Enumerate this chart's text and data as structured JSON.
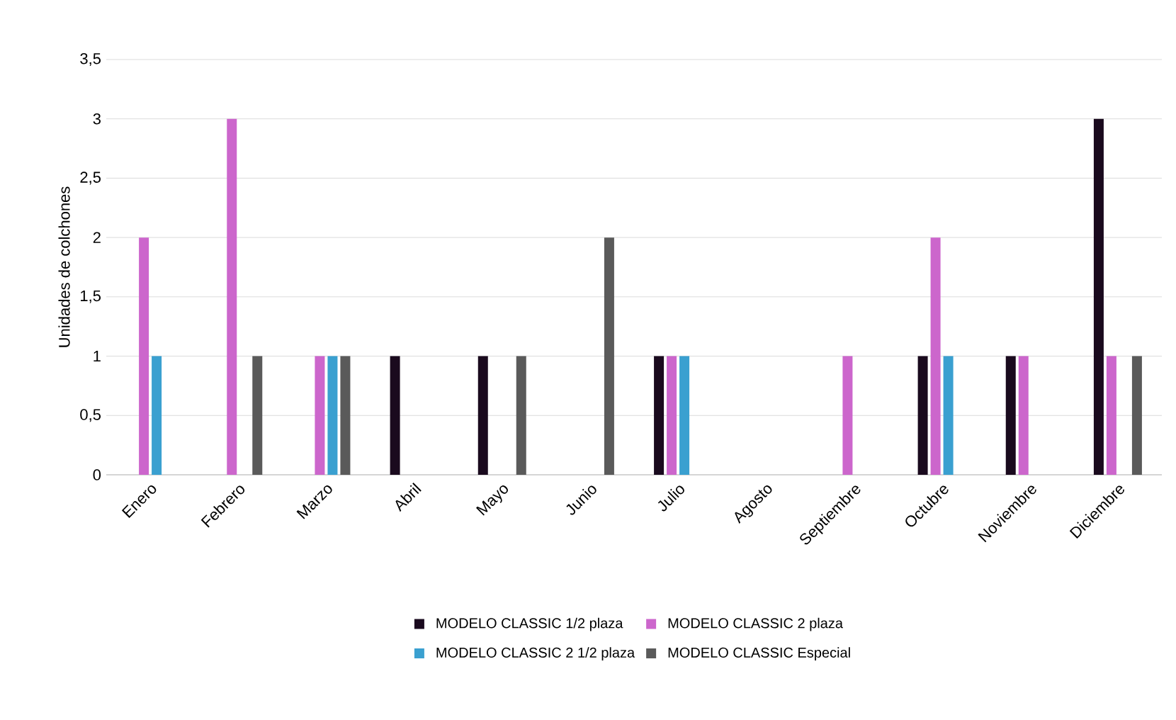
{
  "chart_data": {
    "type": "bar",
    "ylabel": "Unidades de colchones",
    "categories": [
      "Enero",
      "Febrero",
      "Marzo",
      "Abril",
      "Mayo",
      "Junio",
      "Julio",
      "Agosto",
      "Septiembre",
      "Octubre",
      "Noviembre",
      "Diciembre"
    ],
    "series": [
      {
        "name": "MODELO CLASSIC 1/2 plaza",
        "color": "#1a0a1e",
        "values": [
          0,
          0,
          0,
          1,
          1,
          0,
          1,
          0,
          0,
          1,
          1,
          3
        ]
      },
      {
        "name": "MODELO CLASSIC 2 plaza",
        "color": "#cc66cc",
        "values": [
          2,
          3,
          1,
          0,
          0,
          0,
          1,
          0,
          1,
          2,
          1,
          1
        ]
      },
      {
        "name": "MODELO CLASSIC 2 1/2 plaza",
        "color": "#3aa0d0",
        "values": [
          1,
          0,
          1,
          0,
          0,
          0,
          1,
          0,
          0,
          1,
          0,
          0
        ]
      },
      {
        "name": "MODELO CLASSIC Especial",
        "color": "#5a5a5a",
        "values": [
          0,
          1,
          1,
          0,
          1,
          2,
          0,
          0,
          0,
          0,
          0,
          1
        ]
      }
    ],
    "ylim": [
      0,
      3.5
    ],
    "yticks": [
      0,
      {
        "value": 0.5,
        "label": "0,5"
      },
      1,
      {
        "value": 1.5,
        "label": "1,5"
      },
      2,
      {
        "value": 2.5,
        "label": "2,5"
      },
      3,
      {
        "value": 3.5,
        "label": "3,5"
      }
    ],
    "grid": "y",
    "legend": "bottom"
  }
}
